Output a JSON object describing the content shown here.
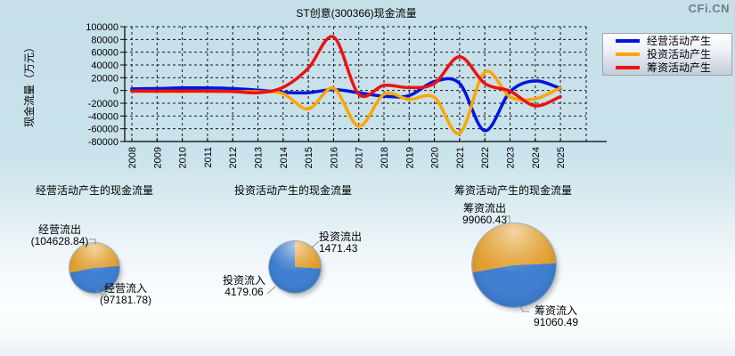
{
  "watermark": "CFi.CN",
  "chart_data": [
    {
      "type": "line",
      "title": "ST创意(300366)现金流量",
      "xlabel": "",
      "ylabel": "现金流量（万元）",
      "x": [
        2008,
        2009,
        2010,
        2011,
        2012,
        2013,
        2014,
        2015,
        2016,
        2017,
        2018,
        2019,
        2020,
        2021,
        2022,
        2023,
        2024,
        2025
      ],
      "ylim": [
        -80000,
        100000
      ],
      "yticks": [
        100000,
        80000,
        60000,
        40000,
        20000,
        0,
        -20000,
        -40000,
        -60000,
        -80000
      ],
      "grid": true,
      "legend_position": "top-right",
      "series": [
        {
          "name": "经营活动产生",
          "color": "#0015dd",
          "values": [
            2500,
            3000,
            4000,
            4000,
            3000,
            500,
            -3000,
            -3500,
            1500,
            -3500,
            -9000,
            -8000,
            14000,
            11000,
            -63000,
            -2000,
            15000,
            3000
          ]
        },
        {
          "name": "投资活动产生",
          "color": "#ffa500",
          "values": [
            -1200,
            -1500,
            -1800,
            -1500,
            -1800,
            -2000,
            -5000,
            -29000,
            3500,
            -56000,
            -6000,
            -14000,
            -11000,
            -67000,
            29000,
            -10000,
            -13000,
            4000
          ]
        },
        {
          "name": "筹资活动产生",
          "color": "#ee1111",
          "values": [
            -1000,
            -1000,
            -800,
            -1000,
            -1500,
            -3500,
            5000,
            35000,
            84000,
            -6000,
            8000,
            4500,
            11000,
            53000,
            11000,
            -1000,
            -24000,
            -9500
          ]
        }
      ]
    },
    {
      "type": "pie",
      "title": "经营活动产生的现金流量",
      "start_deg": 259,
      "slices": [
        {
          "label": "经营流出",
          "value": 104628.84,
          "display": "(104628.84)",
          "color": "#e2a032"
        },
        {
          "label": "经营流入",
          "value": 97181.78,
          "display": "(97181.78)",
          "color": "#3f7fd0"
        }
      ]
    },
    {
      "type": "pie",
      "title": "投资活动产生的现金流量",
      "start_deg": 0,
      "slices": [
        {
          "label": "投资流出",
          "value": 1471.43,
          "display": "1471.43",
          "color": "#e2a032"
        },
        {
          "label": "投资流入",
          "value": 4179.06,
          "display": "4179.06",
          "color": "#3f7fd0"
        }
      ]
    },
    {
      "type": "pie",
      "title": "筹资活动产生的现金流量",
      "start_deg": 260,
      "slices": [
        {
          "label": "筹资流出",
          "value": 99060.43,
          "display": "99060.43",
          "color": "#e2a032"
        },
        {
          "label": "筹资流入",
          "value": 91060.49,
          "display": "91060.49",
          "color": "#3f7fd0"
        }
      ]
    }
  ]
}
